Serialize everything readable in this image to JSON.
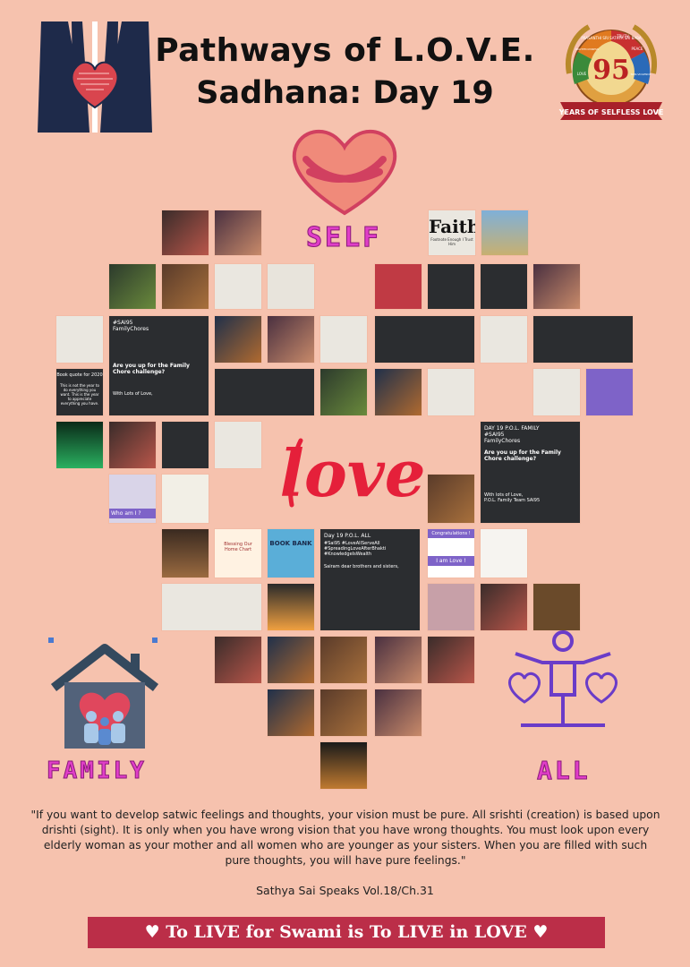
{
  "header": {
    "title_line1": "Pathways of L.O.V.E.",
    "title_line2": "Sadhana: Day 19"
  },
  "emblem": {
    "top_text": "PRASANTHI SRI SATHYA SAI BABA",
    "number": "95",
    "ribbon": "YEARS OF SELFLESS LOVE",
    "petal_words": [
      "TRUTH",
      "RIGHTEOUSNESS",
      "PEACE",
      "LOVE",
      "NON-VIOLENCE"
    ]
  },
  "pathways": {
    "self_label": "SELF",
    "family_label": "FAMILY",
    "all_label": "ALL",
    "center_word": "love"
  },
  "tiles": {
    "faith_heading": "Faith",
    "faith_sub": "Footnote Enough I Trust Him",
    "book_bank": "BOOK BANK",
    "who_am_i": "Who am I ?",
    "i_am_love": "I am Love !",
    "congratulations": "Congratulations !",
    "bookquote_title": "Book quote for 2020",
    "bookquote_text": "This is not the year to do everything you want. This is the year to appreciate everything you have.",
    "chore_post_tag": "#SAI95",
    "chore_post_sub": "FamilyChores",
    "chore_post_q": "Are you up for the Family Chore challenge?",
    "chore_post_sign": "With Lots of Love,",
    "day19_title": "DAY 19 P.O.L. FAMILY",
    "day19_tag": "#SAI95",
    "day19_sub": "FamilyChores",
    "day19_q": "Are you up for the Family Chore challenge?",
    "day19_sign": "With lots of Love,",
    "day19_team": "P.O.L. Family Team SAI95",
    "all_title": "Day 19 P.O.L. ALL",
    "all_tags": "#Sai95 #LoveAllServeAll #SpreadingLoveAfterBhakti #KnowledgeIsWealth",
    "all_greet": "Sairam dear brothers and sisters,",
    "blessing": "Blessing Our Home Chart"
  },
  "quote": {
    "text": "\"If you want to develop satwic feelings and thoughts, your vision must be pure. All srishti (creation) is based upon drishti (sight). It is only when you have wrong vision that you have wrong thoughts. You must look upon every elderly woman as your mother and all women who are younger as your sisters. When you are filled with such pure thoughts, you will have pure feelings.\"",
    "source": "Sathya Sai Speaks Vol.18/Ch.31"
  },
  "banner": {
    "text": "♥ To LIVE for Swami is To LIVE in LOVE ♥"
  },
  "colors": {
    "background": "#f6c2ae",
    "accent_pink": "#e03ec8",
    "banner_red": "#bb2e48",
    "heart_red": "#e0475d",
    "purple": "#6a3cc8"
  }
}
